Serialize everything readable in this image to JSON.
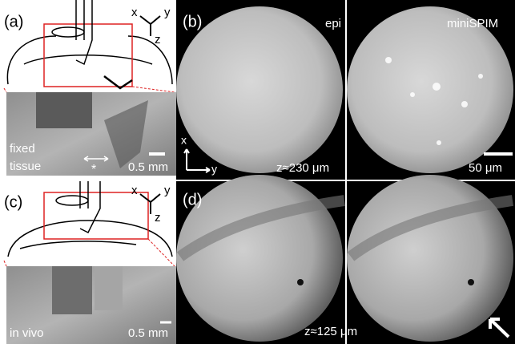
{
  "panel_a": {
    "label": "(a)",
    "axes": {
      "x": "x",
      "y": "y",
      "z": "z"
    },
    "photo": {
      "line1": "fixed",
      "line2": "tissue",
      "marker": "*",
      "scale": "0.5 mm"
    }
  },
  "panel_b": {
    "label": "(b)",
    "left_title": "epi",
    "right_title": "miniSPIM",
    "axes": {
      "x": "x",
      "y": "y"
    },
    "depth": "z≈230 μm",
    "scale": "50 μm"
  },
  "panel_c": {
    "label": "(c)",
    "axes": {
      "x": "x",
      "y": "y",
      "z": "z"
    },
    "photo": {
      "line1": "in vivo",
      "scale": "0.5 mm"
    }
  },
  "panel_d": {
    "label": "(d)",
    "depth": "z≈125 μm"
  }
}
